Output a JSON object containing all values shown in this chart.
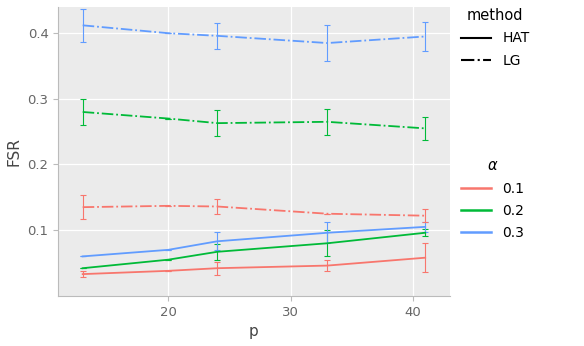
{
  "p": [
    13,
    20,
    24,
    33,
    41
  ],
  "HAT_alpha01": [
    0.033,
    0.038,
    0.042,
    0.046,
    0.058
  ],
  "HAT_alpha02": [
    0.042,
    0.055,
    0.067,
    0.08,
    0.096
  ],
  "HAT_alpha03": [
    0.06,
    0.07,
    0.083,
    0.096,
    0.105
  ],
  "LG_alpha01": [
    0.135,
    0.137,
    0.136,
    0.125,
    0.122
  ],
  "LG_alpha02": [
    0.28,
    0.27,
    0.263,
    0.265,
    0.255
  ],
  "LG_alpha03": [
    0.412,
    0.4,
    0.396,
    0.385,
    0.395
  ],
  "HAT_alpha01_err": [
    0.005,
    0.0,
    0.01,
    0.008,
    0.022
  ],
  "HAT_alpha02_err": [
    0.0,
    0.0,
    0.012,
    0.02,
    0.005
  ],
  "HAT_alpha03_err": [
    0.0,
    0.0,
    0.014,
    0.016,
    0.008
  ],
  "LG_alpha01_err": [
    0.018,
    0.0,
    0.012,
    0.0,
    0.01
  ],
  "LG_alpha02_err": [
    0.02,
    0.0,
    0.02,
    0.02,
    0.018
  ],
  "LG_alpha03_err": [
    0.025,
    0.0,
    0.02,
    0.028,
    0.022
  ],
  "color_red": "#F8766D",
  "color_green": "#00BA38",
  "color_blue": "#619CFF",
  "bg_color": "#FFFFFF",
  "panel_bg": "#EBEBEB",
  "grid_color": "#FFFFFF",
  "xlabel": "p",
  "ylabel": "FSR",
  "ylim": [
    0.0,
    0.44
  ],
  "xlim": [
    11,
    43
  ]
}
